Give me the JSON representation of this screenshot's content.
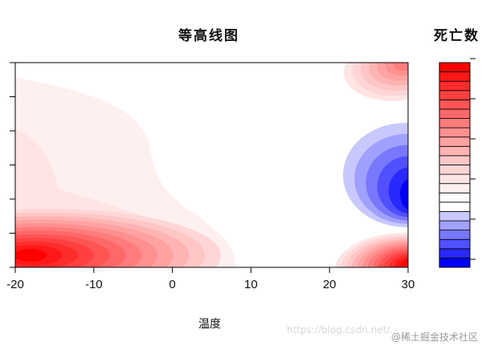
{
  "chart_data": {
    "type": "heatmap",
    "subtype": "filled-contour",
    "title": "等高线图",
    "xlabel": "温度",
    "ylabel": "",
    "xlim": [
      -20,
      30
    ],
    "x_ticks": [
      "-20",
      "-10",
      "0",
      "10",
      "20",
      "30"
    ],
    "y_ticks_count": 7,
    "y_tick_labels_visible": false,
    "colorbar": {
      "title": "死亡数",
      "levels_low_to_high": [
        "#0000ff",
        "#2828ff",
        "#5050ff",
        "#7878ff",
        "#a0a0ff",
        "#c8c8ff",
        "#ffffff",
        "#ffffff",
        "#fff0f0",
        "#ffe4e4",
        "#ffd6d6",
        "#ffc6c6",
        "#ffb4b4",
        "#ffa2a2",
        "#ff9090",
        "#ff7c7c",
        "#ff6868",
        "#ff5454",
        "#ff4040",
        "#ff2c2c",
        "#ff1818",
        "#ff0000"
      ]
    },
    "regions": [
      {
        "where": "bottom-left (x≈-20..5)",
        "trend": "high, red"
      },
      {
        "where": "bottom-right (x≈22..30)",
        "trend": "high, red"
      },
      {
        "where": "top-right (x≈22..30)",
        "trend": "moderately high, light red"
      },
      {
        "where": "right-middle (x≈22..30)",
        "trend": "low, blue"
      },
      {
        "where": "left half upper",
        "trend": "slightly above baseline, faint pink"
      },
      {
        "where": "center",
        "trend": "baseline, white"
      }
    ]
  },
  "watermark": {
    "line1": "https://blog.csdn.net/...",
    "line2": "@稀土掘金技术社区"
  }
}
